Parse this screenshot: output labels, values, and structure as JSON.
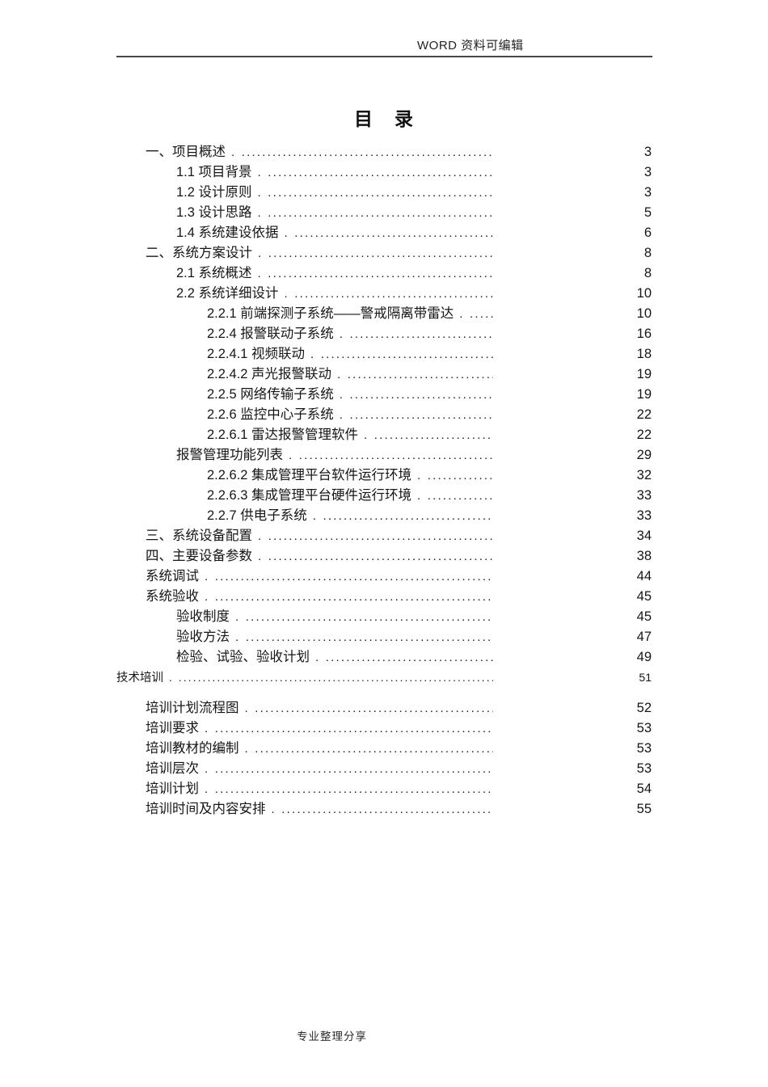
{
  "header": {
    "label": "WORD 资料可编辑"
  },
  "document": {
    "title": "目　录"
  },
  "toc": {
    "items": [
      {
        "level": 1,
        "label": "一、项目概述",
        "page": "3"
      },
      {
        "level": 2,
        "label": "1.1 项目背景",
        "page": "3"
      },
      {
        "level": 2,
        "label": "1.2 设计原则",
        "page": "3"
      },
      {
        "level": 2,
        "label": "1.3 设计思路",
        "page": "5"
      },
      {
        "level": 2,
        "label": "1.4 系统建设依据",
        "page": "6"
      },
      {
        "level": 1,
        "label": "二、系统方案设计",
        "page": "8"
      },
      {
        "level": 2,
        "label": "2.1 系统概述",
        "page": "8"
      },
      {
        "level": 2,
        "label": "2.2 系统详细设计",
        "page": "10"
      },
      {
        "level": 3,
        "label": "2.2.1 前端探测子系统——警戒隔离带雷达",
        "page": "10"
      },
      {
        "level": 3,
        "label": "2.2.4 报警联动子系统",
        "page": "16"
      },
      {
        "level": 3,
        "label": "2.2.4.1 视频联动",
        "page": "18"
      },
      {
        "level": 3,
        "label": "2.2.4.2 声光报警联动",
        "page": "19"
      },
      {
        "level": 3,
        "label": "2.2.5 网络传输子系统",
        "page": "19"
      },
      {
        "level": 3,
        "label": "2.2.6 监控中心子系统",
        "page": "22"
      },
      {
        "level": 3,
        "label": "2.2.6.1 雷达报警管理软件",
        "page": "22"
      },
      {
        "level": 2,
        "label": "报警管理功能列表",
        "page": "29"
      },
      {
        "level": 3,
        "label": "2.2.6.2 集成管理平台软件运行环境",
        "page": "32"
      },
      {
        "level": 3,
        "label": "2.2.6.3 集成管理平台硬件运行环境",
        "page": "33"
      },
      {
        "level": 3,
        "label": "2.2.7 供电子系统",
        "page": "33"
      },
      {
        "level": 1,
        "label": "三、系统设备配置",
        "page": "34"
      },
      {
        "level": 1,
        "label": "四、主要设备参数",
        "page": "38"
      },
      {
        "level": 1,
        "label": "系统调试",
        "page": "44"
      },
      {
        "level": 1,
        "label": "系统验收",
        "page": "45"
      },
      {
        "level": 2,
        "label": "验收制度",
        "page": "45"
      },
      {
        "level": 2,
        "label": "验收方法",
        "page": "47"
      },
      {
        "level": 2,
        "label": "检验、试验、验收计划",
        "page": "49"
      },
      {
        "level": 0,
        "label": "技术培训",
        "page": "51",
        "small": true,
        "gap_after": true
      },
      {
        "level": 1,
        "label": "培训计划流程图",
        "page": "52"
      },
      {
        "level": 1,
        "label": "培训要求",
        "page": "53"
      },
      {
        "level": 1,
        "label": "培训教材的编制",
        "page": "53"
      },
      {
        "level": 1,
        "label": "培训层次",
        "page": "53"
      },
      {
        "level": 1,
        "label": "培训计划",
        "page": "54"
      },
      {
        "level": 1,
        "label": "培训时间及内容安排",
        "page": "55"
      }
    ]
  },
  "footer": {
    "label": "专业整理分享"
  }
}
